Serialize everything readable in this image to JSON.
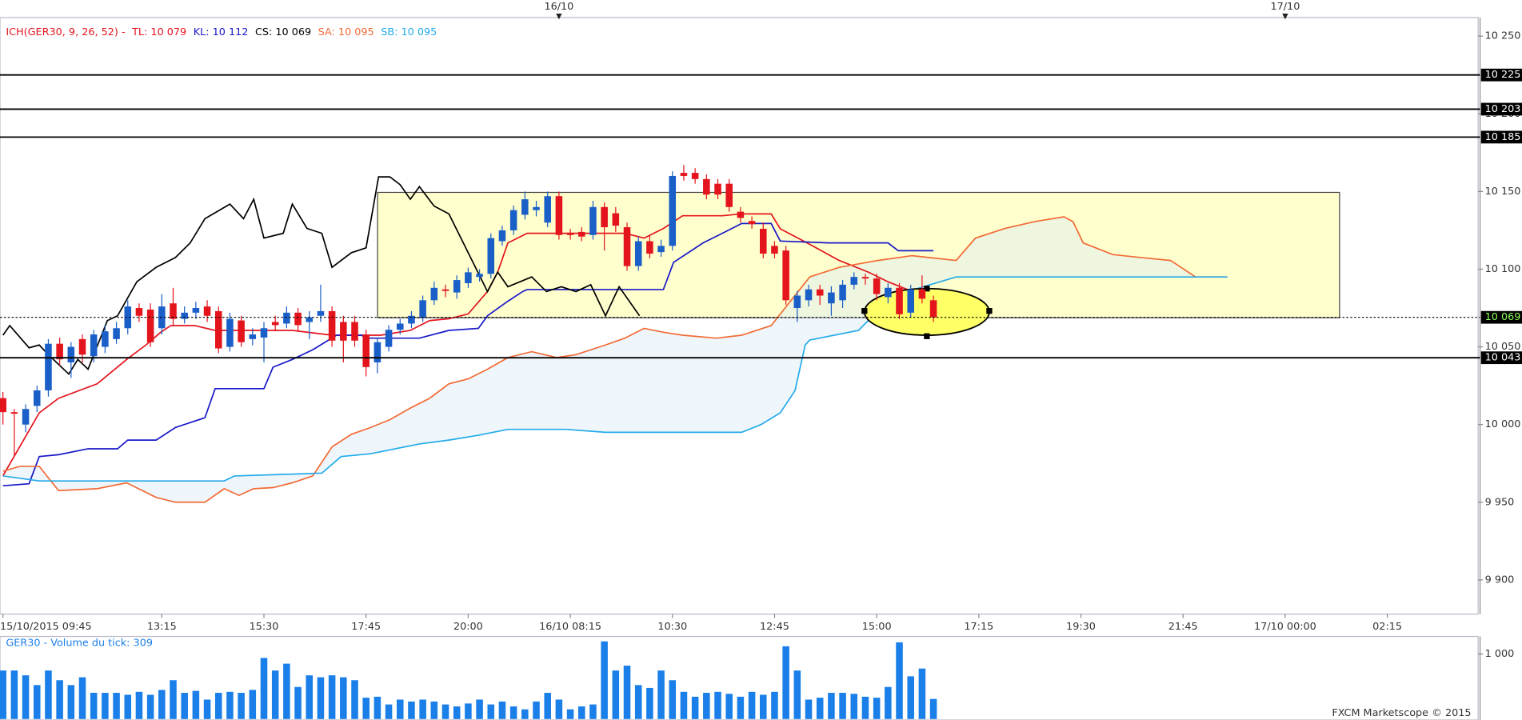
{
  "chart_data": [
    {
      "type": "candlestick",
      "indicator": "ICH(GER30, 9, 26, 52) -",
      "up_color": "#1a5fc8",
      "down_color": "#e3141c",
      "open": [
        10017,
        10008,
        10000,
        10012,
        10022,
        10052,
        10040,
        10055,
        10044,
        10050,
        10055,
        10062,
        10075,
        10074,
        10062,
        10078,
        10068,
        10072,
        10076,
        10073,
        10050,
        10067,
        10055,
        10056,
        10066,
        10065,
        10072,
        10066,
        10070,
        10073,
        10066,
        10066,
        10058,
        10040,
        10050,
        10061,
        10065,
        10069,
        10080,
        10087,
        10085,
        10091,
        10095,
        10097,
        10118,
        10125,
        10135,
        10138,
        10130,
        10147,
        10123,
        10124,
        10122,
        10140,
        10136,
        10127,
        10102,
        10118,
        10111,
        10115,
        10162,
        10162,
        10158,
        10155,
        10155,
        10137,
        10131,
        10126,
        10115,
        10112,
        10075,
        10080,
        10087,
        10078,
        10080,
        10090,
        10095,
        10094,
        10082,
        10088,
        10072,
        10087,
        10080
      ],
      "high": [
        10021,
        10010,
        10013,
        10025,
        10055,
        10056,
        10053,
        10058,
        10061,
        10064,
        10066,
        10080,
        10078,
        10078,
        10084,
        10088,
        10076,
        10079,
        10080,
        10076,
        10072,
        10070,
        10062,
        10066,
        10070,
        10076,
        10075,
        10073,
        10090,
        10076,
        10070,
        10070,
        10061,
        10056,
        10064,
        10068,
        10073,
        10083,
        10092,
        10090,
        10096,
        10101,
        10100,
        10123,
        10128,
        10141,
        10150,
        10144,
        10150,
        10150,
        10126,
        10127,
        10144,
        10143,
        10140,
        10130,
        10121,
        10122,
        10119,
        10163,
        10167,
        10165,
        10161,
        10158,
        10158,
        10140,
        10134,
        10130,
        10118,
        10115,
        10086,
        10090,
        10090,
        10089,
        10093,
        10098,
        10097,
        10097,
        10091,
        10091,
        10090,
        10096,
        10083
      ],
      "low": [
        10000,
        9980,
        9995,
        10008,
        10018,
        10038,
        10030,
        10040,
        10040,
        10046,
        10052,
        10058,
        10066,
        10050,
        10058,
        10064,
        10065,
        10068,
        10066,
        10046,
        10047,
        10050,
        10051,
        10040,
        10060,
        10062,
        10060,
        10055,
        10066,
        10050,
        10040,
        10050,
        10031,
        10033,
        10047,
        10058,
        10062,
        10066,
        10077,
        10082,
        10081,
        10088,
        10092,
        10094,
        10115,
        10122,
        10132,
        10134,
        10127,
        10119,
        10119,
        10118,
        10119,
        10112,
        10124,
        10099,
        10099,
        10107,
        10108,
        10112,
        10157,
        10155,
        10145,
        10145,
        10137,
        10130,
        10126,
        10107,
        10107,
        10077,
        10066,
        10076,
        10077,
        10070,
        10075,
        10087,
        10090,
        10080,
        10078,
        10068,
        10069,
        10078,
        10066
      ],
      "close": [
        10008,
        10007,
        10010,
        10022,
        10052,
        10042,
        10050,
        10045,
        10058,
        10060,
        10062,
        10076,
        10070,
        10053,
        10076,
        10068,
        10072,
        10075,
        10070,
        10049,
        10068,
        10053,
        10058,
        10062,
        10064,
        10072,
        10064,
        10069,
        10073,
        10054,
        10054,
        10054,
        10037,
        10053,
        10061,
        10065,
        10070,
        10080,
        10088,
        10086,
        10093,
        10098,
        10097,
        10120,
        10125,
        10138,
        10145,
        10140,
        10147,
        10122,
        10122,
        10121,
        10140,
        10127,
        10128,
        10102,
        10118,
        10110,
        10115,
        10160,
        10160,
        10158,
        10148,
        10148,
        10140,
        10133,
        10129,
        10110,
        10110,
        10080,
        10083,
        10087,
        10083,
        10085,
        10090,
        10095,
        10094,
        10084,
        10088,
        10071,
        10087,
        10081,
        10069
      ],
      "series": [
        {
          "name": "TL: 10 079",
          "color": "#e3141c",
          "x": [
            0,
            3.2,
            4.9,
            8.3,
            10.9,
            12.6,
            13.9,
            14.8,
            16.9,
            18.7,
            22.1,
            25.5,
            29,
            31.6,
            33.3,
            35.9,
            37.6,
            39.3,
            41,
            42.7,
            43.6,
            44.5,
            46.2,
            48.8,
            51.3,
            54.8,
            56.5,
            58.2,
            59.9,
            63.4,
            65.1,
            67.7,
            68.5,
            71.1,
            73.7,
            76.3,
            78,
            79.7,
            82
          ],
          "values": [
            9967,
            10007.5,
            10016.9,
            10026.2,
            10041.9,
            10051.2,
            10059.4,
            10063.7,
            10063.7,
            10060.6,
            10060.6,
            10060.6,
            10057.5,
            10057.5,
            10057.5,
            10060.6,
            10066.9,
            10068.1,
            10071.2,
            10085.6,
            10098.1,
            10116.9,
            10123.1,
            10123.1,
            10123.1,
            10123.1,
            10120,
            10126.2,
            10134.4,
            10134.4,
            10135.6,
            10135.6,
            10126,
            10116,
            10105.6,
            10098,
            10091.9,
            10086.9,
            10079
          ]
        },
        {
          "name": "KL: 10 112",
          "color": "#1818c8",
          "x": [
            0,
            2.3,
            3.2,
            4.9,
            7.5,
            10.1,
            11,
            13.5,
            15.2,
            17.8,
            18.7,
            23,
            23.8,
            25.5,
            27.3,
            29.4,
            31.6,
            32,
            36.7,
            39.3,
            41.9,
            42.7,
            44.5,
            45.8,
            46.2,
            58.2,
            59.1,
            61.7,
            63.4,
            65.1,
            67.7,
            68.5,
            72.8,
            78,
            78.9,
            82
          ],
          "values": [
            9960.6,
            9961.9,
            9979.4,
            9980.6,
            9984.4,
            9984.4,
            9990,
            9990,
            9998.1,
            10004.4,
            10023.1,
            10023.1,
            10036.9,
            10041.9,
            10048.1,
            10057.5,
            10057.5,
            10055.6,
            10055.6,
            10060.6,
            10061.9,
            10070,
            10079.4,
            10085.6,
            10086.9,
            10086.9,
            10104.4,
            10116.9,
            10123.1,
            10129.4,
            10129.4,
            10118.1,
            10116.9,
            10116.9,
            10111.9,
            10111.9
          ]
        },
        {
          "name": "CS: 10 069",
          "color": "#000000",
          "x": [
            0,
            0.6,
            2.3,
            3.2,
            4,
            5.8,
            6.6,
            7.5,
            9.2,
            10.1,
            11.8,
            13.5,
            15.2,
            16.5,
            17.8,
            20,
            21.2,
            22.1,
            23,
            24.7,
            25.5,
            26.8,
            28.1,
            29,
            30.7,
            32,
            33.1,
            34.1,
            35,
            35.9,
            36.7,
            38,
            39.3,
            41,
            42.7,
            43.6,
            44.5,
            46.6,
            47.9,
            49.2,
            50.5,
            51.8,
            53.1,
            54.3,
            56.1
          ],
          "values": [
            10057.5,
            10063.7,
            10049.4,
            10051.2,
            10045,
            10032.5,
            10041.9,
            10035.6,
            10066.9,
            10070,
            10091.9,
            10101.2,
            10107.5,
            10116.9,
            10132.5,
            10141.9,
            10132.5,
            10145,
            10120,
            10123.1,
            10141.9,
            10126.2,
            10123.1,
            10101.2,
            10110.6,
            10113.7,
            10159.4,
            10159.4,
            10154.4,
            10145,
            10153.1,
            10140.6,
            10135.6,
            10110.6,
            10085.6,
            10098.1,
            10088.7,
            10095,
            10085.6,
            10088.7,
            10085.6,
            10090,
            10070,
            10088.7,
            10070
          ]
        },
        {
          "name": "SA: 10 095",
          "color": "#f26a35",
          "x": [
            0,
            1.5,
            3.2,
            4.9,
            8.3,
            10.9,
            13.5,
            15.2,
            17.8,
            19.5,
            20.8,
            22.1,
            23.8,
            25.5,
            27.3,
            29,
            30.7,
            32.4,
            34.1,
            35.9,
            37.6,
            39.3,
            41,
            42.7,
            44.5,
            46.6,
            48.8,
            50.5,
            53.1,
            54.8,
            56.5,
            58.2,
            59.9,
            62.9,
            65.1,
            67.7,
            69.4,
            71.1,
            73.7,
            77.1,
            80.1,
            84,
            85.7,
            88.3,
            90.9,
            93.5,
            94.3,
            95.2,
            97.8,
            100.3,
            102.9,
            105.1,
            107.9
          ],
          "values": [
            9970,
            9973.1,
            9973.1,
            9957.5,
            9958.7,
            9962.5,
            9953.1,
            9950,
            9950,
            9958.7,
            9954.4,
            9958.7,
            9959.4,
            9962.5,
            9966.9,
            9985.6,
            9993.7,
            9998.1,
            10003.1,
            10010.6,
            10016.9,
            10026.2,
            10029.4,
            10035.6,
            10043.1,
            10046.9,
            10043.1,
            10045,
            10051.2,
            10055.6,
            10061.9,
            10059.4,
            10057.5,
            10055.6,
            10057.5,
            10063.7,
            10079.4,
            10095,
            10101.2,
            10105.6,
            10108.7,
            10105.6,
            10120,
            10126.2,
            10130.6,
            10133.7,
            10130.6,
            10116.9,
            10109.4,
            10107.5,
            10105.6,
            10095,
            10095
          ]
        },
        {
          "name": "SB: 10 095",
          "color": "#22aaea",
          "x": [
            0,
            3.2,
            19.5,
            20.4,
            28.1,
            29.8,
            32.4,
            36.7,
            39.3,
            41.9,
            44.5,
            49.6,
            53.1,
            65.1,
            66.8,
            68.5,
            69.8,
            70.7,
            71.1,
            75.4,
            77.1,
            79.7,
            84,
            107.9
          ],
          "values": [
            9966.9,
            9963.7,
            9963.7,
            9966.9,
            9968.7,
            9979.4,
            9981.2,
            9987.5,
            9990,
            9993.1,
            9996.9,
            9996.9,
            9995,
            9995,
            10000,
            10007.5,
            10021.8,
            10051.2,
            10054.4,
            10060.6,
            10073.1,
            10085.6,
            10095,
            10095
          ]
        }
      ],
      "xlim": [
        -0.26,
        130
      ],
      "xticks": [
        {
          "value": 0,
          "label": "15/10/2015 09:45"
        },
        {
          "value": 14,
          "label": "13:15"
        },
        {
          "value": 23,
          "label": "15:30"
        },
        {
          "value": 32,
          "label": "17:45"
        },
        {
          "value": 41,
          "label": "20:00"
        },
        {
          "value": 50,
          "label": "16/10 08:15"
        },
        {
          "value": 59,
          "label": "10:30"
        },
        {
          "value": 68,
          "label": "12:45"
        },
        {
          "value": 77,
          "label": "15:00"
        },
        {
          "value": 86,
          "label": "17:15"
        },
        {
          "value": 95,
          "label": "19:30"
        },
        {
          "value": 104,
          "label": "21:45"
        },
        {
          "value": 113,
          "label": "17/10 00:00"
        },
        {
          "value": 122,
          "label": "02:15"
        }
      ],
      "top_ticks": [
        {
          "value": 49,
          "label": "16/10"
        },
        {
          "value": 113,
          "label": "17/10"
        }
      ],
      "ylim": [
        9878,
        10262
      ],
      "yticks": [
        {
          "value": 9900,
          "label": "9 900"
        },
        {
          "value": 9950,
          "label": "9 950"
        },
        {
          "value": 10000,
          "label": "10 000"
        },
        {
          "value": 10050,
          "label": "10 050"
        },
        {
          "value": 10100,
          "label": "10 100"
        },
        {
          "value": 10150,
          "label": "10 150"
        },
        {
          "value": 10200,
          "label": "10 200"
        },
        {
          "value": 10250,
          "label": "10 250"
        }
      ],
      "levels": [
        {
          "value": 10225,
          "label": "10 225"
        },
        {
          "value": 10203,
          "label": "10 203"
        },
        {
          "value": 10185,
          "label": "10 185"
        },
        {
          "value": 10043,
          "label": "10 043"
        }
      ],
      "current": {
        "value": 10069,
        "label": "10 069"
      }
    },
    {
      "type": "bar",
      "title": "GER30 - Volume du tick: 309",
      "color": "#1a7fe8",
      "values": [
        746,
        746,
        672,
        522,
        746,
        597,
        522,
        642,
        403,
        403,
        403,
        373,
        418,
        373,
        448,
        597,
        403,
        433,
        299,
        403,
        418,
        403,
        448,
        940,
        746,
        851,
        493,
        672,
        642,
        672,
        642,
        597,
        328,
        343,
        224,
        299,
        269,
        299,
        269,
        224,
        194,
        239,
        299,
        224,
        269,
        194,
        149,
        269,
        403,
        299,
        149,
        194,
        224,
        1194,
        746,
        821,
        522,
        478,
        746,
        597,
        418,
        343,
        403,
        418,
        388,
        343,
        418,
        373,
        418,
        1119,
        746,
        299,
        328,
        403,
        403,
        388,
        343,
        328,
        493,
        1179,
        657,
        776,
        309
      ],
      "xlim": [
        -0.26,
        130
      ],
      "ylim": [
        0,
        1270
      ],
      "yticks": [
        {
          "value": 1000,
          "label": "1 000"
        }
      ]
    }
  ],
  "footer": "FXCM Marketscope © 2015"
}
